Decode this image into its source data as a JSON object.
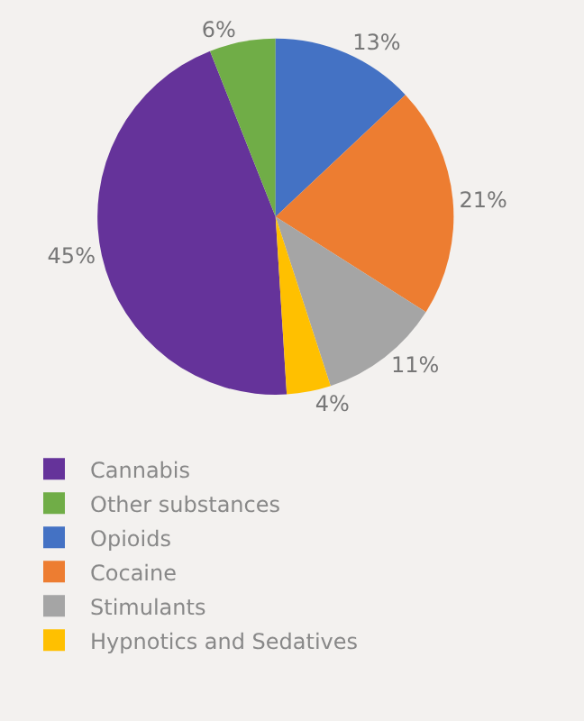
{
  "chart_data": {
    "type": "pie",
    "categories": [
      "Cannabis",
      "Other substances",
      "Opioids",
      "Cocaine",
      "Stimulants",
      "Hypnotics and Sedatives"
    ],
    "values": [
      45,
      6,
      13,
      21,
      11,
      4
    ],
    "value_labels": [
      "45%",
      "6%",
      "13%",
      "21%",
      "11%",
      "4%"
    ],
    "colors": [
      "#65339a",
      "#70ad47",
      "#4472c4",
      "#ed7d31",
      "#a5a5a5",
      "#ffc000"
    ],
    "legend": "bottom left"
  }
}
